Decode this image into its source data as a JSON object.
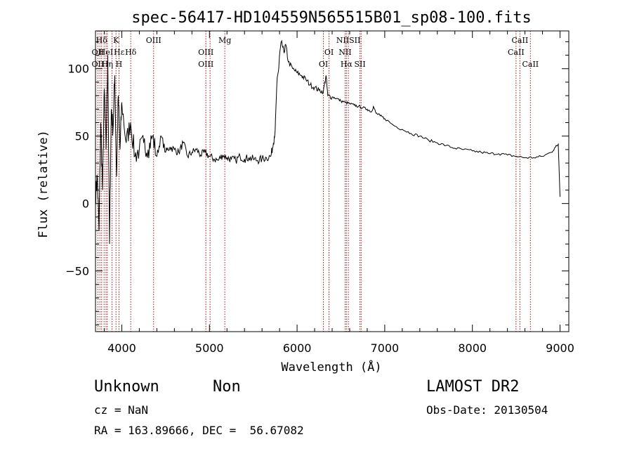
{
  "chart_data": {
    "type": "line",
    "title": "spec-56417-HD104559N565515B01_sp08-100.fits",
    "xlabel": "Wavelength (Å)",
    "ylabel": "Flux (relative)",
    "xlim": [
      3700,
      9100
    ],
    "ylim": [
      -95,
      128
    ],
    "x_ticks": [
      4000,
      5000,
      6000,
      7000,
      8000,
      9000
    ],
    "y_ticks": [
      -50,
      0,
      50,
      100
    ],
    "series": [
      {
        "x": [
          3700,
          3720,
          3740,
          3760,
          3780,
          3800,
          3820,
          3840,
          3860,
          3880,
          3900,
          3920,
          3940,
          3960,
          3980,
          4000,
          4050,
          4100,
          4150,
          4200,
          4250,
          4300,
          4350,
          4400,
          4450,
          4500,
          4550,
          4600,
          4650,
          4700,
          4750,
          4800,
          4850,
          4900,
          4950,
          5000,
          5050,
          5100,
          5150,
          5200,
          5250,
          5300,
          5350,
          5400,
          5450,
          5500,
          5550,
          5600,
          5650,
          5700,
          5730,
          5750,
          5770,
          5790,
          5800,
          5820,
          5850,
          5870,
          5900,
          5950,
          6000,
          6050,
          6100,
          6150,
          6200,
          6250,
          6300,
          6330,
          6350,
          6400,
          6450,
          6500,
          6550,
          6600,
          6650,
          6700,
          6750,
          6800,
          6850,
          6870,
          6900,
          6950,
          7000,
          7100,
          7200,
          7300,
          7400,
          7500,
          7600,
          7700,
          7800,
          7900,
          8000,
          8100,
          8200,
          8300,
          8400,
          8500,
          8600,
          8700,
          8800,
          8900,
          8950,
          8980,
          9000
        ],
        "y": [
          5,
          20,
          -20,
          60,
          10,
          85,
          40,
          110,
          -30,
          70,
          55,
          95,
          20,
          80,
          40,
          75,
          45,
          60,
          35,
          40,
          45,
          40,
          50,
          35,
          50,
          38,
          42,
          40,
          38,
          45,
          35,
          38,
          40,
          36,
          38,
          35,
          33,
          32,
          36,
          34,
          33,
          32,
          35,
          33,
          34,
          33,
          32,
          33,
          34,
          35,
          45,
          55,
          90,
          100,
          110,
          120,
          112,
          118,
          105,
          100,
          97,
          95,
          92,
          88,
          86,
          84,
          83,
          95,
          80,
          79,
          78,
          76,
          75,
          74,
          73,
          72,
          71,
          70,
          68,
          72,
          67,
          65,
          63,
          58,
          55,
          52,
          50,
          47,
          45,
          43,
          41,
          40,
          39,
          38,
          37,
          37,
          36,
          35,
          34,
          34,
          35,
          38,
          42,
          44,
          5
        ]
      }
    ],
    "line_markers": [
      {
        "label": "Hδ",
        "x": 3770,
        "row": 0
      },
      {
        "label": "K",
        "x": 3934,
        "row": 0
      },
      {
        "label": "OIII",
        "x": 4363,
        "row": 0
      },
      {
        "label": "Mg",
        "x": 5175,
        "row": 0
      },
      {
        "label": "NIISII",
        "x": 6585,
        "row": 0
      },
      {
        "label": "CaII",
        "x": 8542,
        "row": 0
      },
      {
        "label": "OII",
        "x": 3727,
        "row": 1
      },
      {
        "label": "HeI",
        "x": 3820,
        "row": 1
      },
      {
        "label": "Hε",
        "x": 3970,
        "row": 1
      },
      {
        "label": "Hδ",
        "x": 4102,
        "row": 1
      },
      {
        "label": "OIII",
        "x": 4959,
        "row": 1
      },
      {
        "label": "OI",
        "x": 6364,
        "row": 1
      },
      {
        "label": "NII",
        "x": 6548,
        "row": 1
      },
      {
        "label": "CaII",
        "x": 8498,
        "row": 1
      },
      {
        "label": "OII",
        "x": 3727,
        "row": 2
      },
      {
        "label": "Hη",
        "x": 3835,
        "row": 2
      },
      {
        "label": "H",
        "x": 3968,
        "row": 2
      },
      {
        "label": "OIII",
        "x": 4959,
        "row": 2
      },
      {
        "label": "OI",
        "x": 6300,
        "row": 2
      },
      {
        "label": "Hα",
        "x": 6563,
        "row": 2
      },
      {
        "label": "SII",
        "x": 6717,
        "row": 2
      },
      {
        "label": "CaII",
        "x": 8662,
        "row": 2
      }
    ],
    "marker_lines_x": [
      3727,
      3750,
      3770,
      3798,
      3820,
      3835,
      3889,
      3934,
      3968,
      4102,
      4363,
      4959,
      5007,
      5175,
      6300,
      6364,
      6548,
      6563,
      6585,
      6717,
      6731,
      8498,
      8542,
      8662
    ],
    "grid": false,
    "legend": "none"
  },
  "info": {
    "object_class": "Unknown",
    "subclass": "Non",
    "survey": "LAMOST DR2",
    "cz": "cz = NaN",
    "obs_date": "Obs-Date: 20130504",
    "coords": "RA = 163.89666, DEC =  56.67082"
  },
  "colors": {
    "spectrum": "#000000",
    "marker_line": "#a01818",
    "background": "#ffffff"
  }
}
